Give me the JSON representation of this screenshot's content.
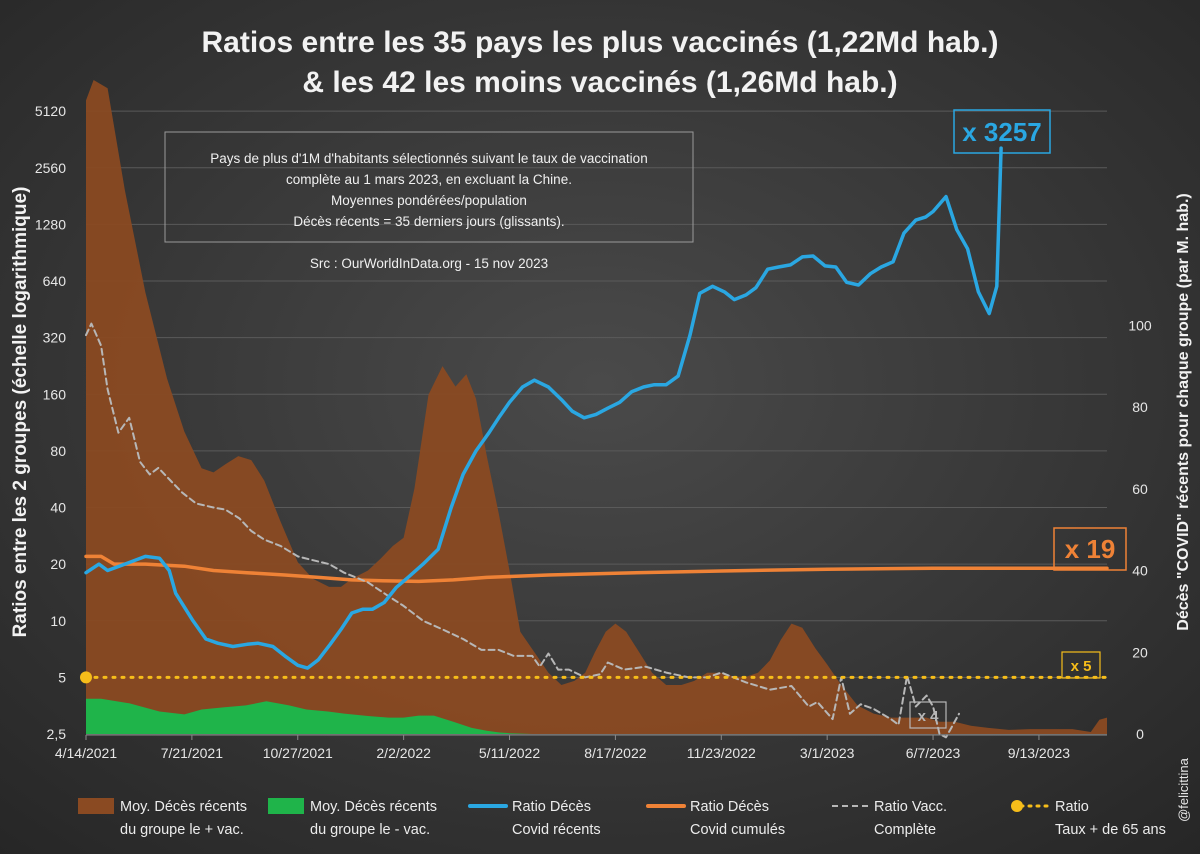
{
  "title_line1": "Ratios entre les 35 pays les plus vaccinés (1,22Md hab.)",
  "title_line2": "& les 42 les moins vaccinés (1,26Md hab.)",
  "info_box": {
    "lines": [
      "Pays de plus d'1M d'habitants sélectionnés suivant le taux de vaccination",
      "complète au 1 mars 2023, en excluant la Chine.",
      "Moyennes pondérées/population",
      "Décès récents = 35 derniers jours (glissants)."
    ]
  },
  "source_text": "Src : OurWorldInData.org - 15 nov 2023",
  "credit": "@felicittina",
  "callouts": {
    "recent": "x 3257",
    "cumul": "x 19",
    "age65": "x 5",
    "vacc": "x 4"
  },
  "colors": {
    "background": "#333333",
    "brown_area": "#8a4a22",
    "green_area": "#1fb44a",
    "blue_line": "#2aa7e2",
    "orange_line": "#ef8236",
    "gray_dashed": "#b7b7b7",
    "yellow_dotted": "#f6bd1a"
  },
  "chart_data": {
    "type": "line",
    "ylabel_left": "Ratios entre les 2 groupes (échelle logarithmique)",
    "ylabel_right": "Décès \"COVID\" récents pour chaque groupe (par M. hab.)",
    "left_axis": {
      "scale": "log2",
      "ticks": [
        "2,5",
        "5",
        "10",
        "20",
        "40",
        "80",
        "160",
        "320",
        "640",
        "1280",
        "2560",
        "5120"
      ],
      "ylim": [
        2.5,
        7500
      ]
    },
    "right_axis": {
      "scale": "linear",
      "ticks": [
        "0",
        "20",
        "40",
        "60",
        "80",
        "100"
      ],
      "ylim": [
        0,
        160
      ]
    },
    "x_ticks": [
      "4/14/2021",
      "7/21/2021",
      "10/27/2021",
      "2/2/2022",
      "5/11/2022",
      "8/17/2022",
      "11/23/2022",
      "3/1/2023",
      "6/7/2023",
      "9/13/2023"
    ],
    "xlim": [
      "2021-04-14",
      "2023-11-15"
    ],
    "legend": [
      {
        "key": "brown",
        "label1": "Moy. Décès récents",
        "label2": "du groupe le + vac."
      },
      {
        "key": "green",
        "label1": "Moy. Décès récents",
        "label2": "du groupe le - vac."
      },
      {
        "key": "blue",
        "label1": "Ratio Décès",
        "label2": "Covid récents"
      },
      {
        "key": "orange",
        "label1": "Ratio Décès",
        "label2": "Covid cumulés"
      },
      {
        "key": "gray",
        "label1": "Ratio Vacc.",
        "label2": "Complète"
      },
      {
        "key": "yellow",
        "label1": "Ratio",
        "label2": "Taux + de 65 ans"
      }
    ],
    "series": [
      {
        "key": "brown",
        "axis": "right",
        "kind": "area",
        "x": [
          "2021-04-14",
          "2021-04-21",
          "2021-05-04",
          "2021-05-20",
          "2021-06-08",
          "2021-06-28",
          "2021-07-14",
          "2021-07-30",
          "2021-08-10",
          "2021-08-21",
          "2021-09-02",
          "2021-09-14",
          "2021-09-26",
          "2021-10-11",
          "2021-10-27",
          "2021-11-10",
          "2021-11-25",
          "2021-12-06",
          "2021-12-16",
          "2021-12-31",
          "2022-01-12",
          "2022-01-23",
          "2022-02-02",
          "2022-02-12",
          "2022-02-25",
          "2022-03-10",
          "2022-03-22",
          "2022-04-01",
          "2022-04-10",
          "2022-04-20",
          "2022-05-01",
          "2022-05-11",
          "2022-05-21",
          "2022-06-03",
          "2022-06-16",
          "2022-06-28",
          "2022-07-10",
          "2022-07-20",
          "2022-07-29",
          "2022-08-08",
          "2022-08-17",
          "2022-08-27",
          "2022-09-08",
          "2022-09-20",
          "2022-10-03",
          "2022-10-17",
          "2022-10-29",
          "2022-11-10",
          "2022-11-23",
          "2022-12-05",
          "2022-12-16",
          "2022-12-27",
          "2023-01-07",
          "2023-01-17",
          "2023-01-27",
          "2023-02-06",
          "2023-02-18",
          "2023-03-01",
          "2023-03-14",
          "2023-03-29",
          "2023-04-13",
          "2023-04-29",
          "2023-05-14",
          "2023-06-01",
          "2023-06-13",
          "2023-06-27",
          "2023-07-12",
          "2023-07-28",
          "2023-08-16",
          "2023-09-05",
          "2023-09-25",
          "2023-10-14",
          "2023-10-31",
          "2023-11-08",
          "2023-11-15"
        ],
        "values": [
          155,
          160,
          158,
          133,
          108,
          87,
          74,
          65,
          64,
          66,
          68,
          67,
          62,
          52,
          42,
          38,
          36,
          36,
          38,
          40,
          43,
          46,
          48,
          60,
          83,
          90,
          85,
          88,
          82,
          68,
          54,
          40,
          25,
          20,
          15,
          12,
          13,
          15,
          20,
          25,
          27,
          25,
          20,
          15,
          12,
          12,
          13,
          15,
          15,
          14,
          14,
          15,
          18,
          23,
          27,
          26,
          21,
          17,
          12,
          7,
          5,
          4,
          4,
          4,
          3,
          3,
          2,
          1.5,
          1.0,
          1.2,
          1.2,
          1.2,
          0.5,
          3.5,
          4
        ]
      },
      {
        "key": "green",
        "axis": "right",
        "kind": "area",
        "x": [
          "2021-04-14",
          "2021-04-28",
          "2021-05-24",
          "2021-06-21",
          "2021-07-14",
          "2021-07-30",
          "2021-08-19",
          "2021-09-09",
          "2021-09-28",
          "2021-10-19",
          "2021-11-04",
          "2021-11-24",
          "2021-12-09",
          "2021-12-31",
          "2022-01-19",
          "2022-02-02",
          "2022-02-16",
          "2022-03-02",
          "2022-03-20",
          "2022-04-06",
          "2022-04-20",
          "2022-05-01",
          "2022-05-11",
          "2022-06-01",
          "2023-11-15"
        ],
        "values": [
          8.6,
          8.6,
          7.5,
          5.5,
          4.8,
          6,
          6.5,
          7,
          8,
          7,
          6,
          5.5,
          5,
          4.4,
          4,
          4,
          4.5,
          4.5,
          3,
          1.5,
          0.8,
          0.4,
          0.2,
          0,
          0
        ]
      },
      {
        "key": "blue",
        "axis": "left",
        "kind": "line",
        "x": [
          "2021-04-14",
          "2021-04-26",
          "2021-05-04",
          "2021-05-20",
          "2021-06-08",
          "2021-06-21",
          "2021-06-30",
          "2021-07-06",
          "2021-07-22",
          "2021-08-03",
          "2021-08-14",
          "2021-08-28",
          "2021-09-10",
          "2021-09-20",
          "2021-10-04",
          "2021-10-15",
          "2021-10-27",
          "2021-11-05",
          "2021-11-15",
          "2021-11-26",
          "2021-12-06",
          "2021-12-16",
          "2021-12-26",
          "2022-01-04",
          "2022-01-15",
          "2022-01-26",
          "2022-02-06",
          "2022-02-20",
          "2022-03-06",
          "2022-03-18",
          "2022-03-29",
          "2022-04-10",
          "2022-04-22",
          "2022-05-01",
          "2022-05-11",
          "2022-05-23",
          "2022-06-03",
          "2022-06-16",
          "2022-06-28",
          "2022-07-08",
          "2022-07-19",
          "2022-07-30",
          "2022-08-10",
          "2022-08-21",
          "2022-09-01",
          "2022-09-12",
          "2022-09-22",
          "2022-10-03",
          "2022-10-14",
          "2022-10-25",
          "2022-11-03",
          "2022-11-15",
          "2022-11-26",
          "2022-12-05",
          "2022-12-16",
          "2022-12-25",
          "2023-01-05",
          "2023-01-15",
          "2023-01-26",
          "2023-02-06",
          "2023-02-16",
          "2023-02-27",
          "2023-03-09",
          "2023-03-19",
          "2023-03-30",
          "2023-04-10",
          "2023-04-20",
          "2023-05-01",
          "2023-05-11",
          "2023-05-22",
          "2023-05-31",
          "2023-06-07",
          "2023-06-19",
          "2023-06-29",
          "2023-07-09",
          "2023-07-19",
          "2023-07-29",
          "2023-08-05",
          "2023-08-09"
        ],
        "values": [
          18,
          20,
          18.5,
          20,
          22,
          21.5,
          18.5,
          14,
          10,
          8,
          7.6,
          7.3,
          7.5,
          7.6,
          7.3,
          6.5,
          5.8,
          5.6,
          6.2,
          7.5,
          9,
          11,
          11.5,
          11.5,
          12.5,
          15,
          17,
          20,
          24,
          40,
          60,
          80,
          100,
          120,
          145,
          175,
          190,
          175,
          150,
          130,
          120,
          125,
          135,
          145,
          165,
          175,
          180,
          180,
          200,
          330,
          550,
          600,
          560,
          510,
          540,
          590,
          740,
          760,
          780,
          860,
          870,
          770,
          760,
          630,
          610,
          700,
          760,
          810,
          1150,
          1350,
          1400,
          1500,
          1800,
          1200,
          950,
          560,
          430,
          600,
          3257
        ]
      },
      {
        "key": "orange",
        "axis": "left",
        "kind": "line",
        "x": [
          "2021-04-14",
          "2021-04-28",
          "2021-05-10",
          "2021-06-08",
          "2021-07-14",
          "2021-08-10",
          "2021-09-10",
          "2021-10-15",
          "2021-11-15",
          "2021-12-16",
          "2022-01-19",
          "2022-02-16",
          "2022-03-20",
          "2022-04-20",
          "2022-05-11",
          "2022-06-16",
          "2022-08-17",
          "2022-11-23",
          "2023-03-01",
          "2023-06-07",
          "2023-09-13",
          "2023-11-15"
        ],
        "values": [
          22,
          22,
          20,
          20,
          19.5,
          18.5,
          18,
          17.5,
          17,
          16.5,
          16.3,
          16.2,
          16.5,
          17,
          17.2,
          17.5,
          17.9,
          18.4,
          18.8,
          19,
          19,
          19
        ]
      },
      {
        "key": "gray",
        "axis": "left",
        "kind": "dashed",
        "x": [
          "2021-04-14",
          "2021-04-19",
          "2021-04-28",
          "2021-05-04",
          "2021-05-14",
          "2021-05-24",
          "2021-06-03",
          "2021-06-12",
          "2021-06-20",
          "2021-07-02",
          "2021-07-12",
          "2021-07-25",
          "2021-08-10",
          "2021-08-21",
          "2021-09-03",
          "2021-09-14",
          "2021-09-26",
          "2021-10-11",
          "2021-10-27",
          "2021-11-10",
          "2021-11-25",
          "2021-12-09",
          "2021-12-31",
          "2022-01-19",
          "2022-02-02",
          "2022-02-20",
          "2022-03-10",
          "2022-03-29",
          "2022-04-15",
          "2022-05-01",
          "2022-05-15",
          "2022-06-01",
          "2022-06-08",
          "2022-06-16",
          "2022-06-25",
          "2022-07-05",
          "2022-07-20",
          "2022-08-03",
          "2022-08-10",
          "2022-08-25",
          "2022-09-14",
          "2022-10-03",
          "2022-10-24",
          "2022-11-10",
          "2022-11-23",
          "2022-12-16",
          "2023-01-07",
          "2023-01-27",
          "2023-02-12",
          "2023-02-20",
          "2023-03-06",
          "2023-03-14",
          "2023-03-22",
          "2023-04-01",
          "2023-04-13",
          "2023-04-29",
          "2023-05-06",
          "2023-05-14",
          "2023-05-22",
          "2023-06-01",
          "2023-06-07",
          "2023-06-13",
          "2023-06-19",
          "2023-06-24",
          "2023-07-01"
        ],
        "values": [
          330,
          380,
          290,
          170,
          100,
          120,
          70,
          60,
          65,
          55,
          48,
          42,
          40,
          39,
          35,
          30,
          27,
          25,
          22,
          21,
          20,
          18,
          16,
          13.5,
          12,
          10,
          9,
          8,
          7,
          7,
          6.5,
          6.5,
          5.7,
          6.7,
          5.5,
          5.5,
          5.0,
          5.2,
          6.0,
          5.5,
          5.7,
          5.3,
          5.0,
          5.0,
          5.3,
          4.7,
          4.3,
          4.5,
          3.5,
          3.7,
          3.0,
          5.0,
          3.2,
          3.6,
          3.4,
          3.0,
          2.8,
          5.1,
          3.5,
          4.0,
          3.5,
          2.5,
          2.4,
          2.7,
          3.2
        ]
      },
      {
        "key": "yellow",
        "axis": "left",
        "kind": "dotted",
        "x": [
          "2021-04-14",
          "2023-11-15"
        ],
        "values": [
          5,
          5
        ]
      }
    ]
  }
}
